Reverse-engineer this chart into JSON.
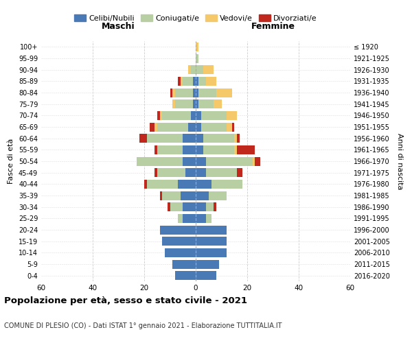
{
  "age_groups": [
    "0-4",
    "5-9",
    "10-14",
    "15-19",
    "20-24",
    "25-29",
    "30-34",
    "35-39",
    "40-44",
    "45-49",
    "50-54",
    "55-59",
    "60-64",
    "65-69",
    "70-74",
    "75-79",
    "80-84",
    "85-89",
    "90-94",
    "95-99",
    "100+"
  ],
  "birth_years": [
    "2016-2020",
    "2011-2015",
    "2006-2010",
    "2001-2005",
    "1996-2000",
    "1991-1995",
    "1986-1990",
    "1981-1985",
    "1976-1980",
    "1971-1975",
    "1966-1970",
    "1961-1965",
    "1956-1960",
    "1951-1955",
    "1946-1950",
    "1941-1945",
    "1936-1940",
    "1931-1935",
    "1926-1930",
    "1921-1925",
    "≤ 1920"
  ],
  "male": {
    "celibi": [
      8,
      9,
      12,
      13,
      14,
      5,
      5,
      6,
      7,
      4,
      5,
      5,
      5,
      3,
      2,
      1,
      1,
      1,
      0,
      0,
      0
    ],
    "coniugati": [
      0,
      0,
      0,
      0,
      0,
      2,
      5,
      7,
      12,
      11,
      18,
      10,
      14,
      12,
      11,
      7,
      7,
      4,
      2,
      0,
      0
    ],
    "vedovi": [
      0,
      0,
      0,
      0,
      0,
      0,
      0,
      0,
      0,
      0,
      0,
      0,
      0,
      1,
      1,
      1,
      1,
      1,
      1,
      0,
      0
    ],
    "divorziati": [
      0,
      0,
      0,
      0,
      0,
      0,
      1,
      1,
      1,
      1,
      0,
      1,
      3,
      2,
      1,
      0,
      1,
      1,
      0,
      0,
      0
    ]
  },
  "female": {
    "nubili": [
      8,
      9,
      12,
      12,
      12,
      4,
      4,
      5,
      6,
      4,
      4,
      3,
      3,
      2,
      2,
      1,
      1,
      1,
      0,
      0,
      0
    ],
    "coniugate": [
      0,
      0,
      0,
      0,
      0,
      2,
      3,
      7,
      12,
      12,
      18,
      12,
      12,
      10,
      10,
      6,
      7,
      3,
      3,
      1,
      0
    ],
    "vedove": [
      0,
      0,
      0,
      0,
      0,
      0,
      0,
      0,
      0,
      0,
      1,
      1,
      1,
      2,
      4,
      3,
      6,
      4,
      4,
      0,
      1
    ],
    "divorziate": [
      0,
      0,
      0,
      0,
      0,
      0,
      1,
      0,
      0,
      2,
      2,
      7,
      1,
      1,
      0,
      0,
      0,
      0,
      0,
      0,
      0
    ]
  },
  "colors": {
    "celibi": "#4a7ab5",
    "coniugati": "#b8cfa4",
    "vedovi": "#f5c96a",
    "divorziati": "#c0281e"
  },
  "title": "Popolazione per età, sesso e stato civile - 2021",
  "subtitle": "COMUNE DI PLESIO (CO) - Dati ISTAT 1° gennaio 2021 - Elaborazione TUTTITALIA.IT",
  "xlabel_left": "Maschi",
  "xlabel_right": "Femmine",
  "ylabel_left": "Fasce di età",
  "ylabel_right": "Anni di nascita",
  "xlim": 60,
  "background_color": "#ffffff",
  "legend_labels": [
    "Celibi/Nubili",
    "Coniugati/e",
    "Vedovi/e",
    "Divorziati/e"
  ]
}
